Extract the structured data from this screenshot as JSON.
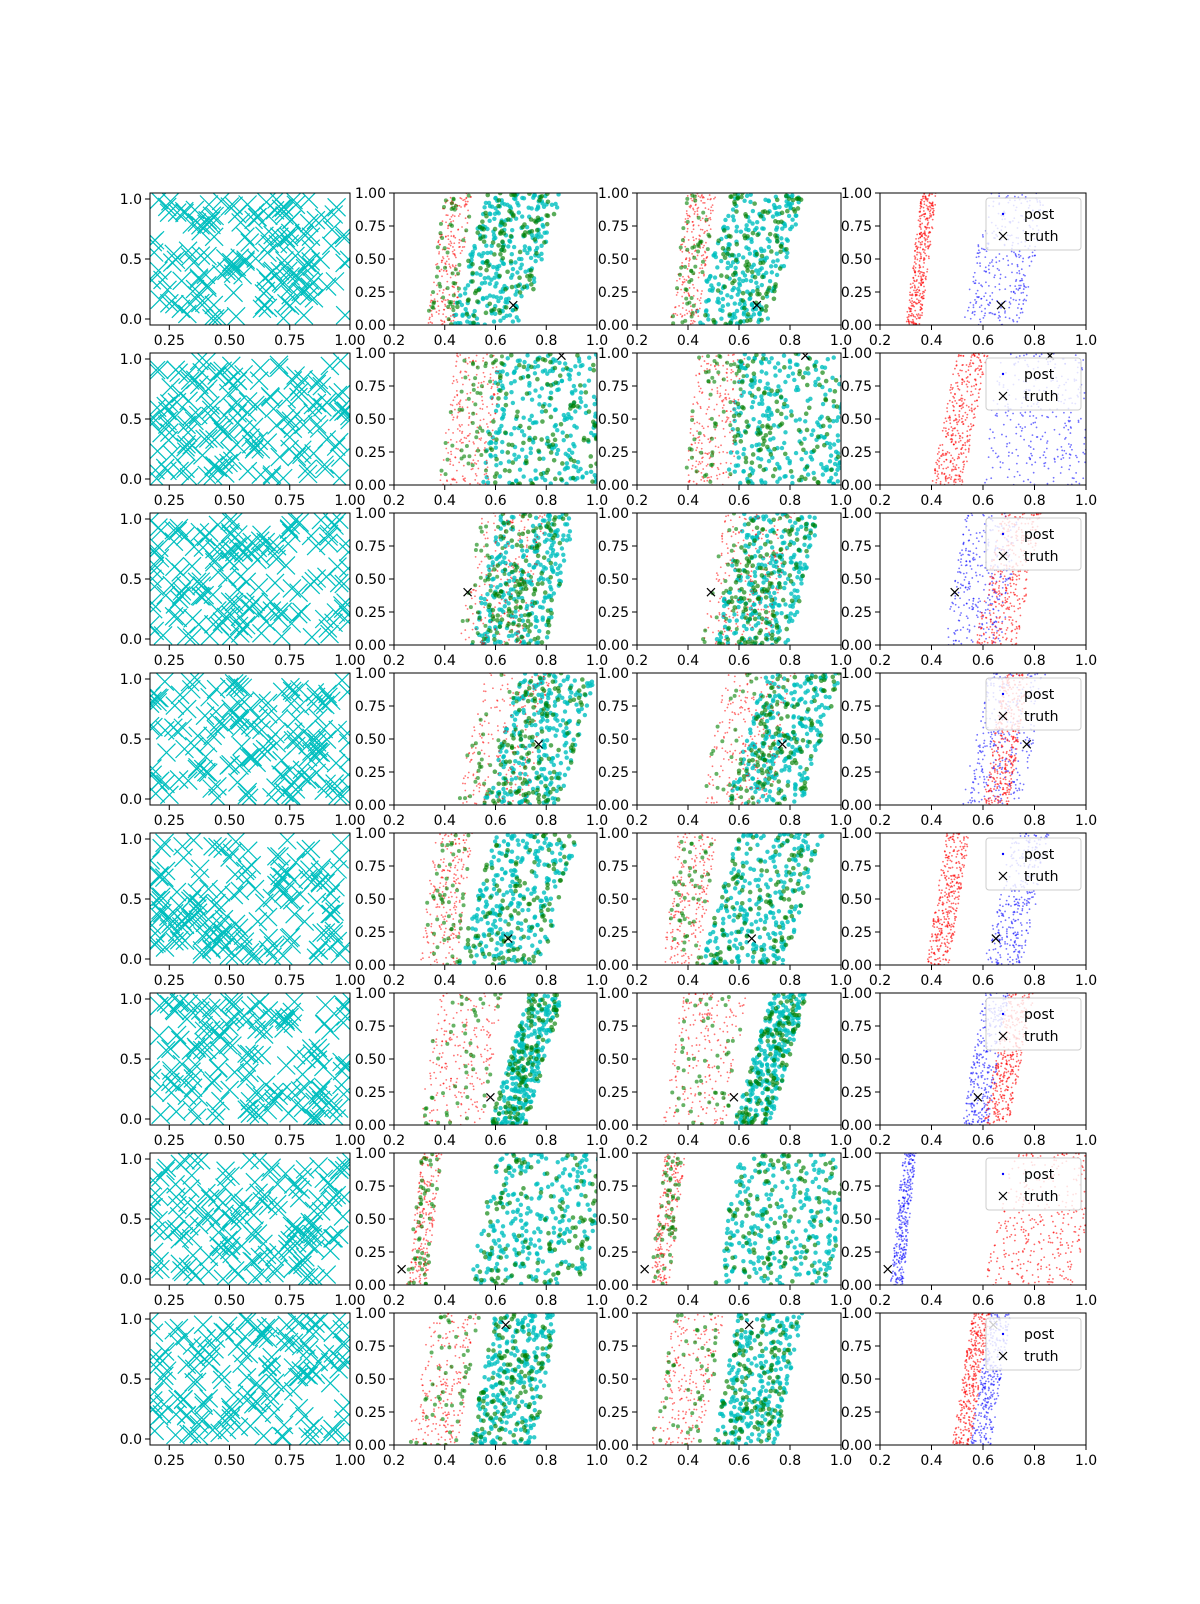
{
  "colors": {
    "prior": "#00bfbf",
    "samples_a": "#008000",
    "samples_b": "#ff0000",
    "post": "#0000ff",
    "truth": "#000000"
  },
  "legend": {
    "post_label": "post",
    "truth_label": "truth",
    "placement": "upper right"
  },
  "axes": {
    "col1": {
      "xlim": [
        0.17,
        1.0
      ],
      "ylim": [
        -0.05,
        1.05
      ],
      "xticks": [
        "0.25",
        "0.50",
        "0.75",
        "1.00"
      ],
      "xtick_values": [
        0.25,
        0.5,
        0.75,
        1.0
      ],
      "yticks": [
        "0.0",
        "0.5",
        "1.0"
      ],
      "ytick_values": [
        0.0,
        0.5,
        1.0
      ]
    },
    "col234": {
      "xlim": [
        0.2,
        1.0
      ],
      "ylim": [
        0.0,
        1.0
      ],
      "xticks": [
        "0.2",
        "0.4",
        "0.6",
        "0.8",
        "1.0"
      ],
      "xtick_values": [
        0.2,
        0.4,
        0.6,
        0.8,
        1.0
      ],
      "yticks": [
        "0.00",
        "0.25",
        "0.50",
        "0.75",
        "1.00"
      ],
      "ytick_values": [
        0.0,
        0.25,
        0.5,
        0.75,
        1.0
      ]
    }
  },
  "chart_data": {
    "type": "scatter",
    "grid": false,
    "layout": {
      "rows": 8,
      "cols": 4
    },
    "rows": [
      {
        "truth": [
          0.67,
          0.15
        ],
        "legend_visible": true,
        "cluster_a": {
          "x0": 0.33,
          "x1": 0.44,
          "slope": 0.07
        },
        "cluster_b": {
          "x0": 0.42,
          "x1": 0.71,
          "slope": 0.15
        },
        "post_red": {
          "x0": 0.3,
          "x1": 0.36,
          "slope": 0.06
        },
        "post_blue": {
          "x0": 0.52,
          "x1": 0.75,
          "slope": 0.1
        }
      },
      {
        "truth": [
          0.86,
          0.98
        ],
        "legend_visible": true,
        "cluster_a": {
          "x0": 0.38,
          "x1": 0.57,
          "slope": 0.06
        },
        "cluster_b": {
          "x0": 0.55,
          "x1": 1.0,
          "slope": 0.05
        },
        "post_red": {
          "x0": 0.4,
          "x1": 0.52,
          "slope": 0.1
        },
        "post_blue": {
          "x0": 0.6,
          "x1": 1.0,
          "slope": 0.05
        }
      },
      {
        "truth": [
          0.49,
          0.4
        ],
        "legend_visible": true,
        "cluster_a": {
          "x0": 0.45,
          "x1": 0.72,
          "slope": 0.1
        },
        "cluster_b": {
          "x0": 0.5,
          "x1": 0.8,
          "slope": 0.12
        },
        "post_red": {
          "x0": 0.57,
          "x1": 0.73,
          "slope": 0.1
        },
        "post_blue": {
          "x0": 0.45,
          "x1": 0.67,
          "slope": 0.08
        }
      },
      {
        "truth": [
          0.77,
          0.46
        ],
        "legend_visible": true,
        "cluster_a": {
          "x0": 0.45,
          "x1": 0.72,
          "slope": 0.1
        },
        "cluster_b": {
          "x0": 0.55,
          "x1": 0.85,
          "slope": 0.15
        },
        "post_red": {
          "x0": 0.6,
          "x1": 0.7,
          "slope": 0.08
        },
        "post_blue": {
          "x0": 0.52,
          "x1": 0.75,
          "slope": 0.1
        }
      },
      {
        "truth": [
          0.65,
          0.2
        ],
        "legend_visible": true,
        "cluster_a": {
          "x0": 0.3,
          "x1": 0.45,
          "slope": 0.06
        },
        "cluster_b": {
          "x0": 0.45,
          "x1": 0.78,
          "slope": 0.15
        },
        "post_red": {
          "x0": 0.38,
          "x1": 0.47,
          "slope": 0.08
        },
        "post_blue": {
          "x0": 0.6,
          "x1": 0.75,
          "slope": 0.12
        }
      },
      {
        "truth": [
          0.58,
          0.21
        ],
        "legend_visible": true,
        "cluster_a": {
          "x0": 0.3,
          "x1": 0.55,
          "slope": 0.08
        },
        "cluster_b": {
          "x0": 0.58,
          "x1": 0.72,
          "slope": 0.15
        },
        "post_red": {
          "x0": 0.6,
          "x1": 0.7,
          "slope": 0.1
        },
        "post_blue": {
          "x0": 0.52,
          "x1": 0.62,
          "slope": 0.08
        }
      },
      {
        "truth": [
          0.23,
          0.12
        ],
        "legend_visible": true,
        "cluster_a": {
          "x0": 0.25,
          "x1": 0.33,
          "slope": 0.06
        },
        "cluster_b": {
          "x0": 0.5,
          "x1": 0.95,
          "slope": 0.1
        },
        "post_red": {
          "x0": 0.6,
          "x1": 0.95,
          "slope": 0.12
        },
        "post_blue": {
          "x0": 0.24,
          "x1": 0.29,
          "slope": 0.05
        }
      },
      {
        "truth": [
          0.64,
          0.91
        ],
        "legend_visible": true,
        "cluster_a": {
          "x0": 0.25,
          "x1": 0.45,
          "slope": 0.1
        },
        "cluster_b": {
          "x0": 0.5,
          "x1": 0.75,
          "slope": 0.1
        },
        "post_red": {
          "x0": 0.48,
          "x1": 0.55,
          "slope": 0.08
        },
        "post_blue": {
          "x0": 0.55,
          "x1": 0.63,
          "slope": 0.08
        }
      }
    ]
  }
}
